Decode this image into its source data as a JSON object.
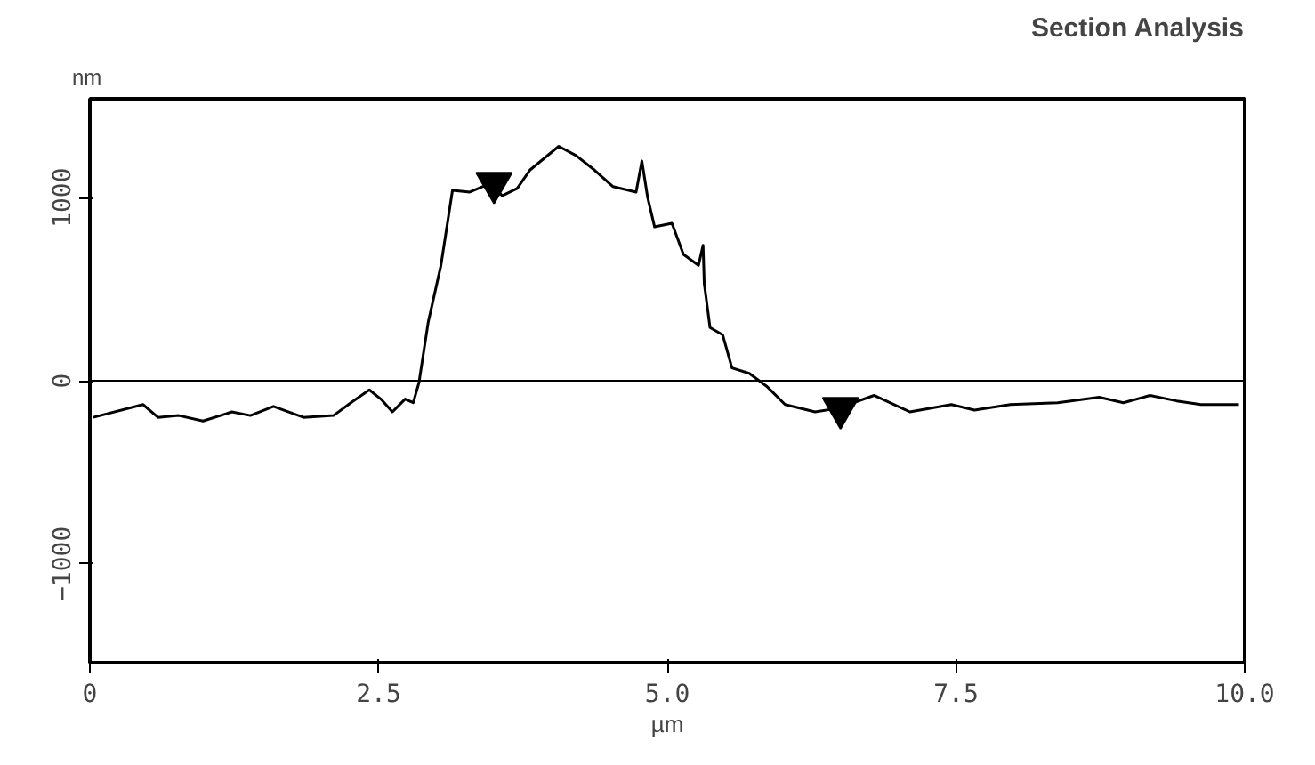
{
  "chart_data": {
    "type": "line",
    "title": "Section Analysis",
    "xlabel": "µm",
    "ylabel": "nm",
    "xlim": [
      0,
      10
    ],
    "ylim": [
      -1540,
      1540
    ],
    "xticks": [
      0,
      {
        "value": 2.5,
        "label": "2.5"
      },
      {
        "value": 5,
        "label": "5.0"
      },
      {
        "value": 7.5,
        "label": "7.5"
      },
      {
        "value": 10,
        "label": "10.0"
      }
    ],
    "yticks": [
      -1000,
      0,
      1000
    ],
    "grid": false,
    "line_style": "solid",
    "marker": "none",
    "ref_lines": [
      {
        "axis": "y",
        "value": 0,
        "color": "#000000"
      }
    ],
    "series": [
      {
        "color": "#000000",
        "x": [
          0.03,
          0.46,
          0.59,
          0.77,
          0.98,
          1.23,
          1.39,
          1.59,
          1.85,
          2.11,
          2.26,
          2.42,
          2.52,
          2.62,
          2.73,
          2.8,
          2.85,
          2.93,
          3.04,
          3.14,
          3.29,
          3.4,
          3.47,
          3.57,
          3.7,
          3.81,
          4.06,
          4.21,
          4.37,
          4.53,
          4.73,
          4.78,
          4.83,
          4.89,
          5.04,
          5.14,
          5.27,
          5.31,
          5.32,
          5.37,
          5.48,
          5.56,
          5.71,
          5.86,
          6.02,
          6.28,
          6.48,
          6.79,
          7.1,
          7.46,
          7.66,
          7.97,
          8.38,
          8.74,
          8.95,
          9.18,
          9.41,
          9.62,
          9.95
        ],
        "values": [
          -200,
          -130,
          -200,
          -190,
          -220,
          -170,
          -190,
          -140,
          -200,
          -190,
          -120,
          -50,
          -100,
          -170,
          -100,
          -120,
          -10,
          320,
          630,
          1040,
          1030,
          1060,
          1080,
          1010,
          1050,
          1150,
          1280,
          1230,
          1150,
          1060,
          1030,
          1200,
          1000,
          840,
          860,
          690,
          630,
          740,
          530,
          290,
          250,
          70,
          40,
          -30,
          -130,
          -170,
          -150,
          -80,
          -170,
          -130,
          -160,
          -130,
          -120,
          -90,
          -120,
          -80,
          -110,
          -130,
          -130
        ]
      },
      {
        "type": "scatter",
        "marker": "triangle",
        "color": "#000000",
        "x": [
          3.5,
          6.5
        ],
        "values": [
          1080,
          -150
        ]
      }
    ]
  }
}
